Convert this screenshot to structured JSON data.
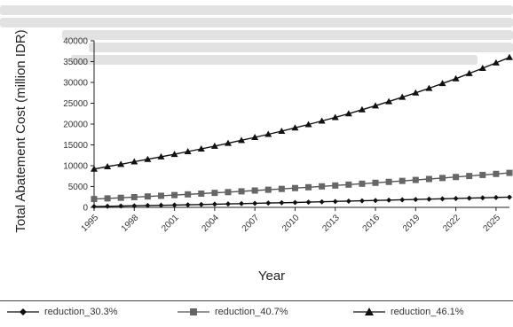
{
  "chart_data": {
    "type": "line",
    "xlabel": "Year",
    "ylabel": "Total Abatement Cost (million IDR)",
    "xlim": [
      1995,
      2026
    ],
    "ylim": [
      0,
      40000
    ],
    "x_ticks": [
      "1995",
      "1998",
      "2001",
      "2004",
      "2007",
      "2010",
      "2013",
      "2016",
      "2019",
      "2022",
      "2025"
    ],
    "y_ticks": [
      "0",
      "5000",
      "10000",
      "15000",
      "20000",
      "25000",
      "30000",
      "35000",
      "40000"
    ],
    "x": [
      1995,
      1996,
      1997,
      1998,
      1999,
      2000,
      2001,
      2002,
      2003,
      2004,
      2005,
      2006,
      2007,
      2008,
      2009,
      2010,
      2011,
      2012,
      2013,
      2014,
      2015,
      2016,
      2017,
      2018,
      2019,
      2020,
      2021,
      2022,
      2023,
      2024,
      2025,
      2026
    ],
    "series": [
      {
        "name": "reduction_30.3%",
        "marker": "diamond",
        "values": [
          200,
          260,
          320,
          380,
          440,
          500,
          560,
          620,
          690,
          760,
          830,
          900,
          970,
          1040,
          1110,
          1180,
          1260,
          1340,
          1420,
          1500,
          1580,
          1660,
          1740,
          1820,
          1900,
          1980,
          2060,
          2140,
          2220,
          2300,
          2380,
          2460
        ]
      },
      {
        "name": "reduction_40.7%",
        "marker": "square",
        "values": [
          2000,
          2150,
          2300,
          2460,
          2620,
          2780,
          2950,
          3120,
          3300,
          3480,
          3660,
          3850,
          4040,
          4230,
          4430,
          4630,
          4830,
          5040,
          5250,
          5460,
          5680,
          5900,
          6120,
          6350,
          6580,
          6810,
          7050,
          7290,
          7530,
          7780,
          8030,
          8280
        ]
      },
      {
        "name": "reduction_46.1%",
        "marker": "triangle",
        "values": [
          9200,
          9800,
          10350,
          10950,
          11550,
          12150,
          12750,
          13400,
          14050,
          14700,
          15400,
          16100,
          16800,
          17550,
          18300,
          19100,
          19900,
          20750,
          21600,
          22500,
          23450,
          24400,
          25400,
          26450,
          27500,
          28600,
          29750,
          30900,
          32150,
          33400,
          34700,
          36000
        ]
      }
    ]
  }
}
